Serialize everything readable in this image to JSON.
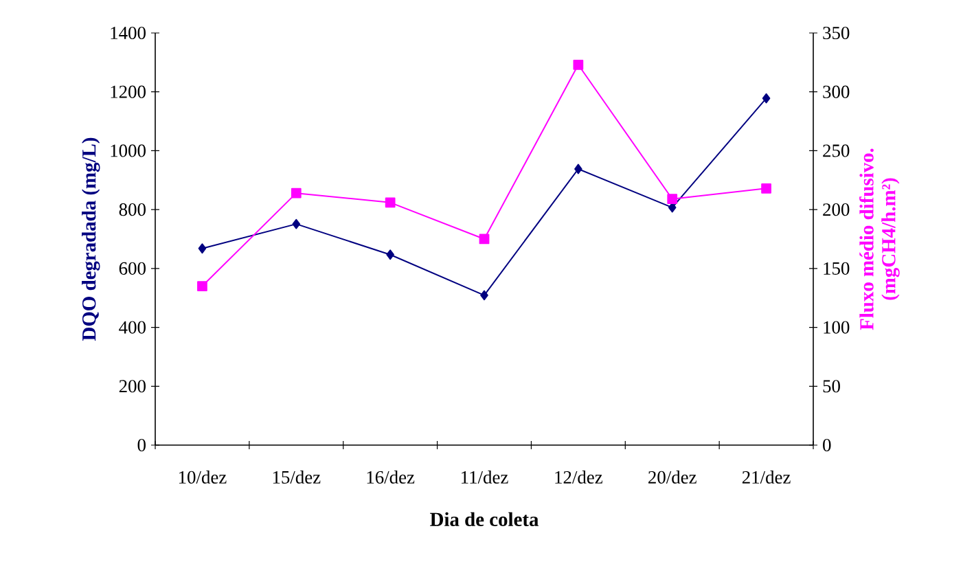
{
  "chart_data": {
    "type": "line",
    "xlabel": "Dia de coleta",
    "ylabel": "DQO degradada (mg/L)",
    "y2label": "Fluxo médio difusivo. (mgCH4/h.m²)",
    "categories": [
      "10/dez",
      "15/dez",
      "16/dez",
      "11/dez",
      "12/dez",
      "20/dez",
      "21/dez"
    ],
    "series": [
      {
        "color": "#000080",
        "marker": "diamond",
        "values": [
          668,
          751,
          647,
          509,
          938,
          807,
          1178
        ]
      },
      {
        "color": "#ff00ff",
        "marker": "square",
        "axis": "y2",
        "values": [
          135,
          214,
          206,
          175,
          323,
          209,
          218
        ]
      }
    ],
    "ylim": [
      0,
      1400
    ],
    "yticks": [
      0,
      200,
      400,
      600,
      800,
      1000,
      1200,
      1400
    ],
    "y2lim": [
      0,
      350
    ],
    "y2ticks": [
      0,
      50,
      100,
      150,
      200,
      250,
      300,
      350
    ],
    "grid": false
  }
}
